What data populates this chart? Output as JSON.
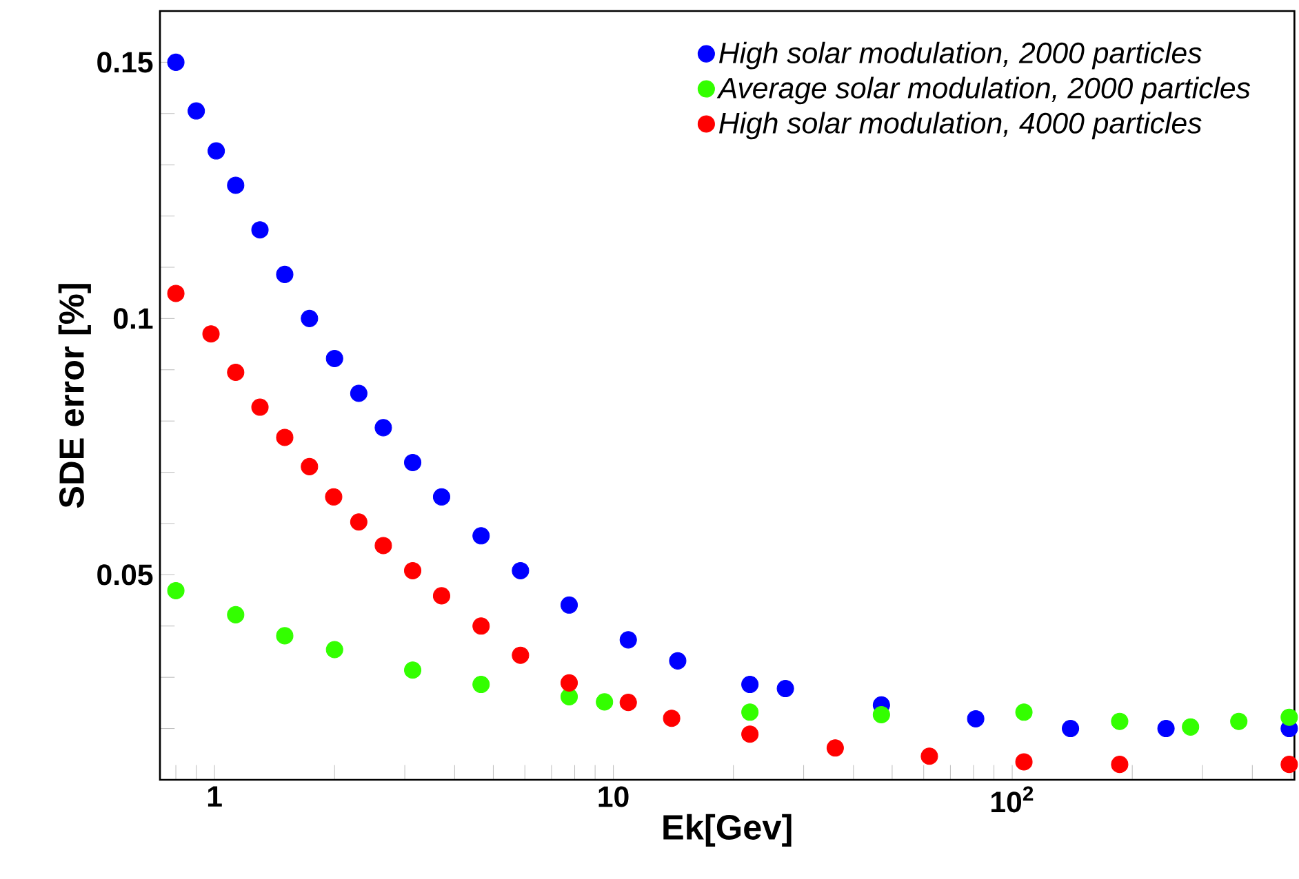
{
  "chart_data": {
    "type": "scatter",
    "xlabel": "Ek[Gev]",
    "ylabel": "SDE error [%]",
    "log": "x",
    "marker": "circle",
    "legend": "top right",
    "xlim": [
      0.73,
      510
    ],
    "ylim": [
      0.01,
      0.16
    ],
    "xticks": [
      {
        "value": 0.8,
        "label": null
      },
      {
        "value": 0.9,
        "label": null
      },
      1,
      {
        "value": 2,
        "label": null
      },
      {
        "value": 3,
        "label": null
      },
      {
        "value": 4,
        "label": null
      },
      {
        "value": 5,
        "label": null
      },
      {
        "value": 6,
        "label": null
      },
      {
        "value": 7,
        "label": null
      },
      {
        "value": 8,
        "label": null
      },
      {
        "value": 9,
        "label": null
      },
      10,
      {
        "value": 20,
        "label": null
      },
      {
        "value": 30,
        "label": null
      },
      {
        "value": 40,
        "label": null
      },
      {
        "value": 50,
        "label": null
      },
      {
        "value": 60,
        "label": null
      },
      {
        "value": 70,
        "label": null
      },
      {
        "value": 80,
        "label": null
      },
      {
        "value": 90,
        "label": null
      },
      {
        "value": 100,
        "label": "10$^{2}$"
      },
      {
        "value": 200,
        "label": null
      },
      {
        "value": 300,
        "label": null
      },
      {
        "value": 400,
        "label": null
      },
      {
        "value": 500,
        "label": null
      }
    ],
    "yticks": [
      {
        "value": 0.02,
        "label": null
      },
      {
        "value": 0.03,
        "label": null
      },
      {
        "value": 0.04,
        "label": null
      },
      0.05,
      {
        "value": 0.06,
        "label": null
      },
      {
        "value": 0.07,
        "label": null
      },
      {
        "value": 0.08,
        "label": null
      },
      {
        "value": 0.09,
        "label": null
      },
      0.1,
      {
        "value": 0.11,
        "label": null
      },
      {
        "value": 0.12,
        "label": null
      },
      {
        "value": 0.13,
        "label": null
      },
      {
        "value": 0.14,
        "label": null
      },
      0.15
    ],
    "series": [
      {
        "name": "High solar modulation, 2000 particles",
        "color": "#0000ff",
        "x": [
          0.8,
          0.9,
          1.01,
          1.13,
          1.3,
          1.5,
          1.73,
          2.0,
          2.3,
          2.65,
          3.14,
          3.71,
          4.66,
          5.85,
          7.75,
          10.9,
          14.5,
          22,
          27,
          47,
          81,
          140,
          243,
          495
        ],
        "values": [
          0.15,
          0.1405,
          0.1327,
          0.126,
          0.1173,
          0.1086,
          0.1,
          0.0922,
          0.0854,
          0.0787,
          0.0719,
          0.0652,
          0.0576,
          0.0508,
          0.0441,
          0.0373,
          0.0332,
          0.0286,
          0.0278,
          0.0246,
          0.0219,
          0.02,
          0.02,
          0.02
        ]
      },
      {
        "name": "Average solar modulation, 2000 particles",
        "color": "#33ff00",
        "x": [
          0.8,
          1.13,
          1.5,
          2.0,
          3.14,
          4.66,
          7.75,
          9.5,
          22,
          47,
          107,
          186,
          280,
          370,
          495
        ],
        "values": [
          0.0469,
          0.0422,
          0.0381,
          0.0354,
          0.0314,
          0.0286,
          0.0262,
          0.0252,
          0.0232,
          0.0227,
          0.0232,
          0.0214,
          0.0203,
          0.0214,
          0.0222
        ]
      },
      {
        "name": "High solar modulation, 4000 particles",
        "color": "#ff0000",
        "x": [
          0.8,
          0.98,
          1.13,
          1.3,
          1.5,
          1.73,
          1.99,
          2.3,
          2.65,
          3.14,
          3.71,
          4.66,
          5.85,
          7.75,
          10.9,
          14,
          22,
          36,
          62,
          107,
          186,
          495
        ],
        "values": [
          0.1049,
          0.097,
          0.0895,
          0.0827,
          0.0768,
          0.0711,
          0.0652,
          0.0603,
          0.0557,
          0.0508,
          0.0459,
          0.04,
          0.0343,
          0.0289,
          0.0251,
          0.022,
          0.0189,
          0.0162,
          0.0146,
          0.0135,
          0.013,
          0.013
        ]
      }
    ]
  }
}
